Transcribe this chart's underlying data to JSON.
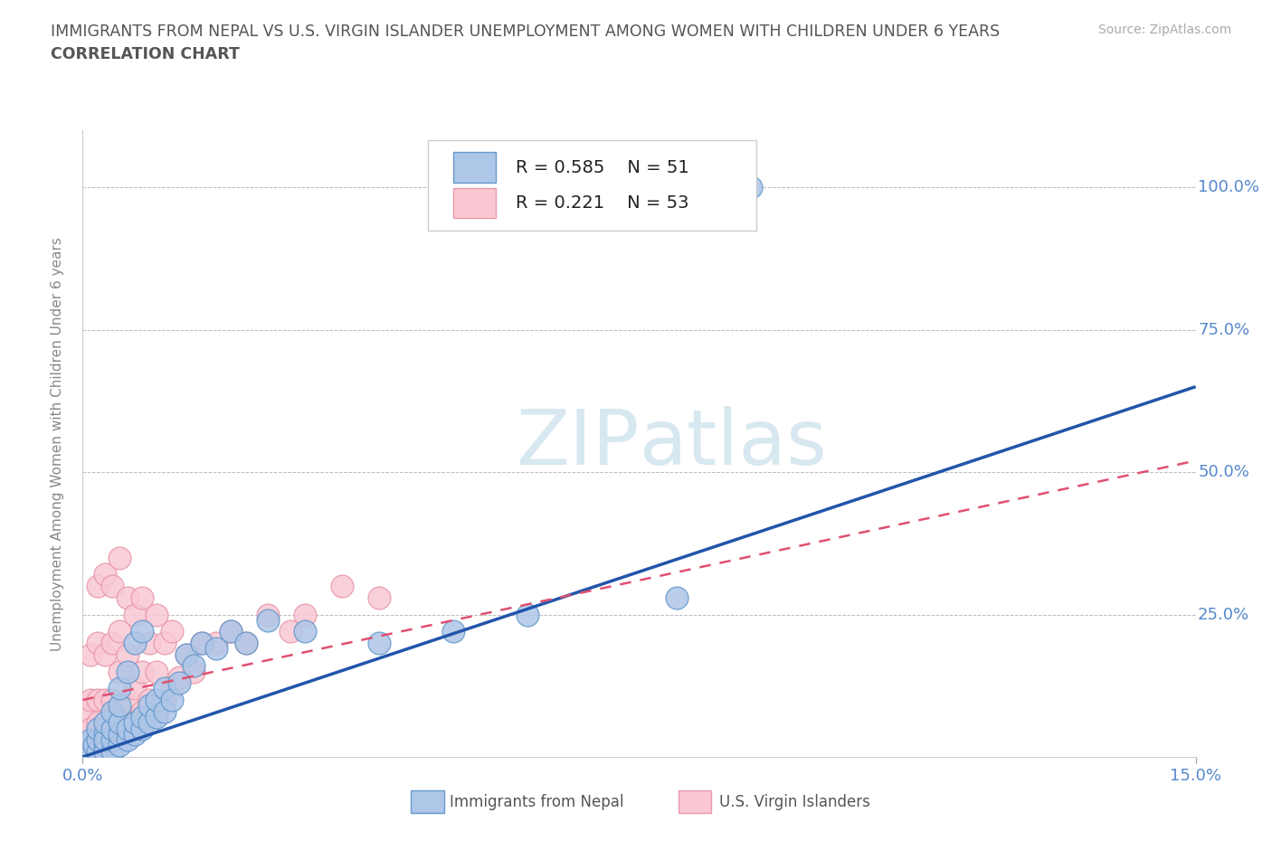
{
  "title_line1": "IMMIGRANTS FROM NEPAL VS U.S. VIRGIN ISLANDER UNEMPLOYMENT AMONG WOMEN WITH CHILDREN UNDER 6 YEARS",
  "title_line2": "CORRELATION CHART",
  "source": "Source: ZipAtlas.com",
  "ylabel": "Unemployment Among Women with Children Under 6 years",
  "xlim": [
    0,
    0.15
  ],
  "ylim": [
    0,
    1.1
  ],
  "ytick_values": [
    0,
    0.25,
    0.5,
    0.75,
    1.0
  ],
  "nepal_color": "#aec6e8",
  "nepal_edge": "#6699cc",
  "virgin_color": "#f9c8d4",
  "virgin_edge": "#e899aa",
  "nepal_R": 0.585,
  "nepal_N": 51,
  "virgin_R": 0.221,
  "virgin_N": 53,
  "nepal_line_color": "#2255aa",
  "virgin_line_color": "#e05070",
  "background": "#ffffff",
  "grid_color": "#bbbbbb",
  "title_color": "#555555",
  "axis_label_color": "#5588cc",
  "watermark_color": "#d8e8f0",
  "nepal_scatter_x": [
    0.0005,
    0.001,
    0.001,
    0.0015,
    0.002,
    0.002,
    0.002,
    0.003,
    0.003,
    0.003,
    0.003,
    0.003,
    0.004,
    0.004,
    0.004,
    0.004,
    0.005,
    0.005,
    0.005,
    0.005,
    0.005,
    0.006,
    0.006,
    0.006,
    0.007,
    0.007,
    0.007,
    0.008,
    0.008,
    0.008,
    0.009,
    0.009,
    0.01,
    0.01,
    0.011,
    0.011,
    0.012,
    0.013,
    0.014,
    0.015,
    0.016,
    0.018,
    0.02,
    0.022,
    0.025,
    0.03,
    0.04,
    0.05,
    0.06,
    0.08,
    0.09
  ],
  "nepal_scatter_y": [
    0.02,
    0.01,
    0.03,
    0.02,
    0.01,
    0.03,
    0.05,
    0.02,
    0.04,
    0.01,
    0.03,
    0.06,
    0.01,
    0.03,
    0.05,
    0.08,
    0.02,
    0.04,
    0.06,
    0.09,
    0.12,
    0.03,
    0.05,
    0.15,
    0.04,
    0.06,
    0.2,
    0.05,
    0.07,
    0.22,
    0.06,
    0.09,
    0.07,
    0.1,
    0.08,
    0.12,
    0.1,
    0.13,
    0.18,
    0.16,
    0.2,
    0.19,
    0.22,
    0.2,
    0.24,
    0.22,
    0.2,
    0.22,
    0.25,
    0.28,
    1.0
  ],
  "virgin_scatter_x": [
    0.0002,
    0.0005,
    0.001,
    0.001,
    0.001,
    0.002,
    0.002,
    0.002,
    0.002,
    0.003,
    0.003,
    0.003,
    0.003,
    0.004,
    0.004,
    0.004,
    0.004,
    0.005,
    0.005,
    0.005,
    0.005,
    0.005,
    0.006,
    0.006,
    0.006,
    0.006,
    0.007,
    0.007,
    0.007,
    0.008,
    0.008,
    0.008,
    0.009,
    0.009,
    0.01,
    0.01,
    0.01,
    0.011,
    0.011,
    0.012,
    0.012,
    0.013,
    0.014,
    0.015,
    0.016,
    0.018,
    0.02,
    0.022,
    0.025,
    0.028,
    0.03,
    0.035,
    0.04
  ],
  "virgin_scatter_y": [
    0.04,
    0.08,
    0.05,
    0.1,
    0.18,
    0.06,
    0.1,
    0.2,
    0.3,
    0.05,
    0.1,
    0.18,
    0.32,
    0.05,
    0.1,
    0.2,
    0.3,
    0.04,
    0.08,
    0.15,
    0.22,
    0.35,
    0.05,
    0.1,
    0.18,
    0.28,
    0.06,
    0.12,
    0.25,
    0.08,
    0.15,
    0.28,
    0.1,
    0.2,
    0.08,
    0.15,
    0.25,
    0.1,
    0.2,
    0.12,
    0.22,
    0.14,
    0.18,
    0.15,
    0.2,
    0.2,
    0.22,
    0.2,
    0.25,
    0.22,
    0.25,
    0.3,
    0.28
  ],
  "nepal_line_x0": 0.0,
  "nepal_line_y0": 0.0,
  "nepal_line_x1": 0.15,
  "nepal_line_y1": 0.65,
  "virgin_line_x0": 0.0,
  "virgin_line_y0": 0.1,
  "virgin_line_x1": 0.15,
  "virgin_line_y1": 0.52
}
